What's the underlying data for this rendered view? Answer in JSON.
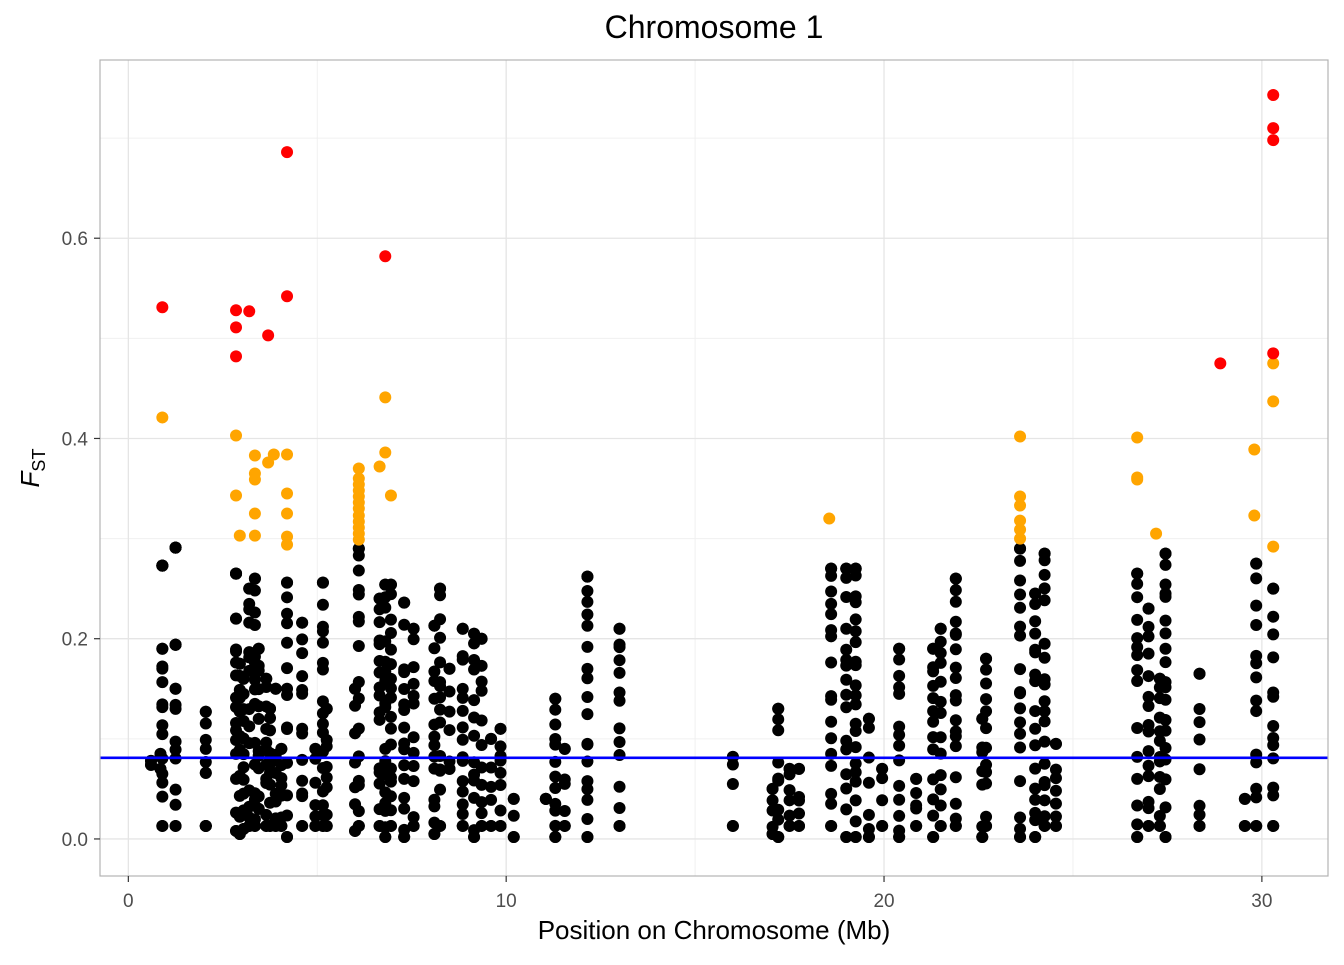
{
  "chart_data": {
    "type": "scatter",
    "title": "Chromosome 1",
    "xlabel": "Position on Chromosome (Mb)",
    "ylabel_main": "F",
    "ylabel_sub": "ST",
    "xlim": [
      -0.75,
      31.75
    ],
    "ylim": [
      -0.037,
      0.778
    ],
    "x_ticks": [
      0,
      10,
      20,
      30
    ],
    "x_tick_labels": [
      "0",
      "10",
      "20",
      "30"
    ],
    "y_ticks": [
      0.0,
      0.2,
      0.4,
      0.6
    ],
    "y_tick_labels": [
      "0.0",
      "0.2",
      "0.4",
      "0.6"
    ],
    "grid": true,
    "threshold_line": {
      "y": 0.081,
      "color": "#0000FF"
    },
    "categories_colors": {
      "below_threshold": "#000000",
      "top_5pct": "#FFA500",
      "top_1pct": "#FF0000"
    },
    "series": [
      {
        "name": "top_1pct",
        "color": "#FF0000",
        "points": [
          [
            0.9,
            0.531
          ],
          [
            2.85,
            0.528
          ],
          [
            3.2,
            0.527
          ],
          [
            2.85,
            0.511
          ],
          [
            2.85,
            0.482
          ],
          [
            3.7,
            0.503
          ],
          [
            4.2,
            0.686
          ],
          [
            4.2,
            0.542
          ],
          [
            6.8,
            0.582
          ],
          [
            28.9,
            0.475
          ],
          [
            30.3,
            0.743
          ],
          [
            30.3,
            0.71
          ],
          [
            30.3,
            0.698
          ],
          [
            30.3,
            0.485
          ]
        ]
      },
      {
        "name": "top_5pct",
        "color": "#FFA500",
        "points": [
          [
            0.9,
            0.421
          ],
          [
            2.85,
            0.403
          ],
          [
            2.85,
            0.343
          ],
          [
            2.95,
            0.303
          ],
          [
            3.35,
            0.383
          ],
          [
            3.35,
            0.365
          ],
          [
            3.35,
            0.359
          ],
          [
            3.35,
            0.325
          ],
          [
            3.35,
            0.303
          ],
          [
            3.7,
            0.376
          ],
          [
            3.85,
            0.384
          ],
          [
            4.2,
            0.384
          ],
          [
            4.2,
            0.345
          ],
          [
            4.2,
            0.325
          ],
          [
            4.2,
            0.302
          ],
          [
            4.2,
            0.294
          ],
          [
            6.1,
            0.37
          ],
          [
            6.1,
            0.36
          ],
          [
            6.1,
            0.354
          ],
          [
            6.1,
            0.348
          ],
          [
            6.1,
            0.342
          ],
          [
            6.1,
            0.336
          ],
          [
            6.1,
            0.33
          ],
          [
            6.1,
            0.323
          ],
          [
            6.1,
            0.317
          ],
          [
            6.1,
            0.311
          ],
          [
            6.1,
            0.305
          ],
          [
            6.1,
            0.299
          ],
          [
            6.65,
            0.372
          ],
          [
            6.8,
            0.441
          ],
          [
            6.8,
            0.386
          ],
          [
            6.95,
            0.343
          ],
          [
            18.55,
            0.32
          ],
          [
            23.6,
            0.402
          ],
          [
            23.6,
            0.342
          ],
          [
            23.6,
            0.333
          ],
          [
            23.6,
            0.318
          ],
          [
            23.6,
            0.309
          ],
          [
            23.6,
            0.3
          ],
          [
            26.7,
            0.401
          ],
          [
            26.7,
            0.361
          ],
          [
            26.7,
            0.359
          ],
          [
            27.2,
            0.305
          ],
          [
            29.8,
            0.389
          ],
          [
            29.8,
            0.323
          ],
          [
            30.3,
            0.475
          ],
          [
            30.3,
            0.437
          ],
          [
            30.3,
            0.292
          ]
        ]
      }
    ],
    "background_columns": {
      "name": "below_threshold",
      "color": "#000000",
      "columns": [
        [
          0.6,
          0.074,
          0.078
        ],
        [
          0.85,
          0.07,
          0.085
        ],
        [
          0.9,
          0.013,
          0.19
        ],
        [
          0.9,
          0.273,
          0.273
        ],
        [
          1.25,
          0.013,
          0.15
        ],
        [
          1.25,
          0.194,
          0.194
        ],
        [
          1.25,
          0.291,
          0.291
        ],
        [
          2.05,
          0.013,
          0.013
        ],
        [
          2.05,
          0.066,
          0.127
        ],
        [
          2.85,
          0.008,
          0.22
        ],
        [
          2.85,
          0.265,
          0.265
        ],
        [
          2.95,
          0.005,
          0.175
        ],
        [
          3.05,
          0.01,
          0.16
        ],
        [
          3.2,
          0.013,
          0.25
        ],
        [
          3.35,
          0.013,
          0.26
        ],
        [
          3.45,
          0.03,
          0.19
        ],
        [
          3.65,
          0.013,
          0.16
        ],
        [
          3.75,
          0.013,
          0.13
        ],
        [
          3.9,
          0.013,
          0.15
        ],
        [
          4.05,
          0.013,
          0.09
        ],
        [
          4.2,
          0.002,
          0.256
        ],
        [
          4.6,
          0.013,
          0.216
        ],
        [
          4.95,
          0.013,
          0.09
        ],
        [
          5.15,
          0.013,
          0.256
        ],
        [
          5.25,
          0.013,
          0.13
        ],
        [
          6.0,
          0.008,
          0.15
        ],
        [
          6.1,
          0.013,
          0.29
        ],
        [
          6.65,
          0.013,
          0.24
        ],
        [
          6.8,
          0.002,
          0.254
        ],
        [
          6.95,
          0.013,
          0.254
        ],
        [
          7.3,
          0.002,
          0.236
        ],
        [
          7.55,
          0.013,
          0.21
        ],
        [
          8.1,
          0.005,
          0.213
        ],
        [
          8.25,
          0.013,
          0.25
        ],
        [
          8.5,
          0.07,
          0.17
        ],
        [
          8.85,
          0.013,
          0.21
        ],
        [
          9.15,
          0.002,
          0.205
        ],
        [
          9.35,
          0.013,
          0.2
        ],
        [
          9.6,
          0.013,
          0.1
        ],
        [
          9.85,
          0.013,
          0.11
        ],
        [
          10.2,
          0.002,
          0.04
        ],
        [
          11.05,
          0.04,
          0.04
        ],
        [
          11.3,
          0.002,
          0.14
        ],
        [
          11.55,
          0.013,
          0.09
        ],
        [
          12.15,
          0.002,
          0.262
        ],
        [
          13.0,
          0.013,
          0.21
        ],
        [
          16.0,
          0.013,
          0.082
        ],
        [
          17.05,
          0.005,
          0.05
        ],
        [
          17.2,
          0.002,
          0.13
        ],
        [
          17.5,
          0.013,
          0.07
        ],
        [
          17.75,
          0.013,
          0.07
        ],
        [
          18.6,
          0.013,
          0.27
        ],
        [
          19.0,
          0.002,
          0.27
        ],
        [
          19.25,
          0.002,
          0.27
        ],
        [
          19.6,
          0.002,
          0.12
        ],
        [
          19.95,
          0.013,
          0.07
        ],
        [
          20.4,
          0.002,
          0.19
        ],
        [
          20.85,
          0.013,
          0.06
        ],
        [
          21.3,
          0.002,
          0.19
        ],
        [
          21.5,
          0.013,
          0.21
        ],
        [
          21.9,
          0.013,
          0.26
        ],
        [
          22.6,
          0.002,
          0.12
        ],
        [
          22.7,
          0.013,
          0.18
        ],
        [
          23.6,
          0.002,
          0.29
        ],
        [
          24.0,
          0.002,
          0.245
        ],
        [
          24.25,
          0.013,
          0.285
        ],
        [
          24.55,
          0.013,
          0.095
        ],
        [
          26.7,
          0.002,
          0.265
        ],
        [
          27.0,
          0.013,
          0.23
        ],
        [
          27.3,
          0.013,
          0.16
        ],
        [
          27.45,
          0.002,
          0.285
        ],
        [
          28.35,
          0.013,
          0.165
        ],
        [
          29.55,
          0.013,
          0.04
        ],
        [
          29.85,
          0.013,
          0.275
        ],
        [
          30.3,
          0.013,
          0.25
        ]
      ]
    }
  }
}
